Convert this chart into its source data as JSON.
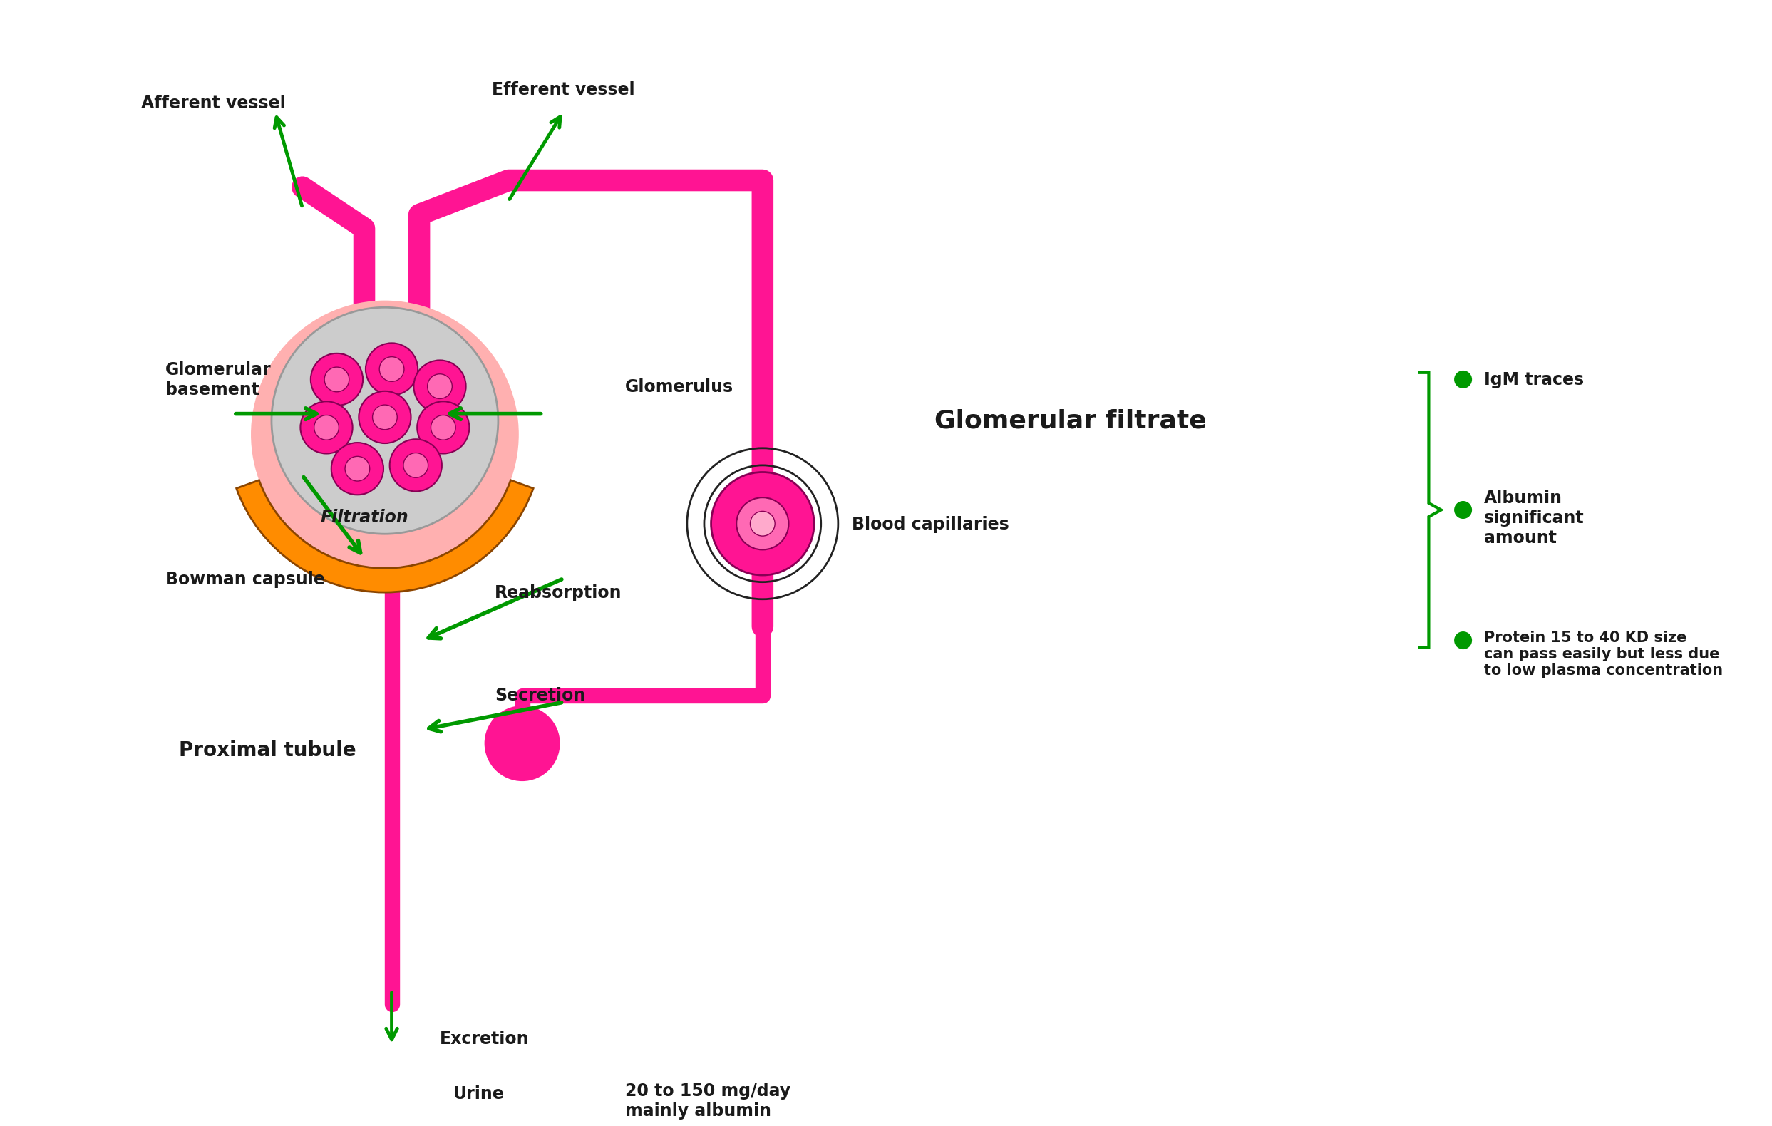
{
  "bg_color": "#ffffff",
  "magenta": "#FF1493",
  "dark_magenta": "#CC0077",
  "green": "#009900",
  "dark_green": "#006600",
  "orange": "#FF8C00",
  "light_pink": "#FFB6C1",
  "light_peach": "#FFCBA4",
  "text_color": "#1a1a1a",
  "labels": {
    "afferent": "Afferent vessel",
    "efferent": "Efferent vessel",
    "glomerular_basement": "Glomerular\nbasement",
    "glomerulus": "Glomerulus",
    "filtration": "Filtration",
    "bowman": "Bowman capsule",
    "proximal": "Proximal tubule",
    "reabsorption": "Reabsorption",
    "secretion": "Secretion",
    "excretion": "Excretion",
    "urine": "Urine",
    "urine_value": "20 to 150 mg/day\nmainly albumin",
    "blood_cap": "Blood capillaries",
    "glom_filtrate": "Glomerular filtrate",
    "bullet1": "IgM traces",
    "bullet2": "Albumin\nsignificant\namount",
    "bullet3": "Protein 15 to 40 KD size\ncan pass easily but less due\nto low plasma concentration"
  }
}
